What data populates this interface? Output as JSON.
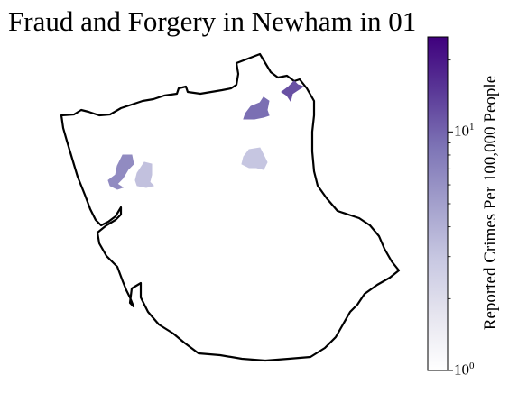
{
  "title": "Fraud and Forgery in Newham in 01",
  "colorbar": {
    "label": "Reported Crimes Per 100,000 People",
    "scale": "log",
    "min": 1,
    "max": 25,
    "ticks": [
      {
        "value": 1,
        "base": "10",
        "exp": "0"
      },
      {
        "value": 10,
        "base": "10",
        "exp": "1"
      }
    ],
    "colormap": [
      "#ffffff",
      "#e6e5ef",
      "#c8c8e2",
      "#a3a0cc",
      "#7e75b6",
      "#5b3a98",
      "#3f007d"
    ]
  },
  "colors": {
    "boundary": "#000000",
    "background": "#ffffff"
  },
  "regions": [
    {
      "name": "",
      "value": 9.0
    },
    {
      "name": "",
      "value": 12.0
    },
    {
      "name": "",
      "value": 6.5
    },
    {
      "name": "",
      "value": 3.2
    },
    {
      "name": "",
      "value": 3.0
    }
  ]
}
